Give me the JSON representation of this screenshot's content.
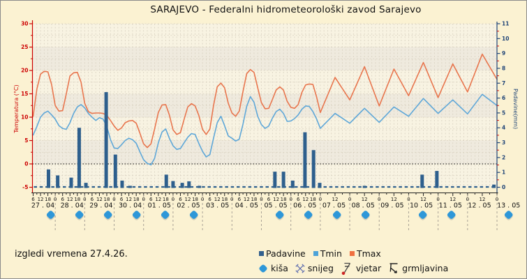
{
  "title": "SARAJEVO - Federalni hidrometeorološki zavod Sarajevo",
  "note": "izgledi vremena 27.4.26.",
  "legend": {
    "series": [
      {
        "label": "Padavine",
        "color": "#33608d"
      },
      {
        "label": "Tmin",
        "color": "#4da3d8"
      },
      {
        "label": "Tmax",
        "color": "#f07040"
      }
    ],
    "symbols": [
      {
        "label": "kiša",
        "icon": "rain"
      },
      {
        "label": "snijeg",
        "icon": "snow"
      },
      {
        "label": "vjetar",
        "icon": "wind"
      },
      {
        "label": "grmljavina",
        "icon": "thunder"
      }
    ]
  },
  "colors": {
    "bg": "#fbf2d2",
    "band_light": "#f8f3e2",
    "band_dark": "#efeade",
    "grid": "#d7d0bf",
    "axis_left": "#cc0000",
    "axis_right": "#1f4477",
    "axis_x": "#222222",
    "text": "#111111",
    "tmax_line": "#e8754d",
    "tmin_line": "#5ea7d8",
    "bar": "#2e5f8d",
    "rain_icon": "#2e97d8",
    "zero_line": "#000000",
    "separator": "#a9a296",
    "snow": "#5c6bae",
    "wind": "#444444",
    "wind_dot": "#cc2222",
    "thunder": "#222222"
  },
  "chart_data": {
    "type": "mixed",
    "title": "SARAJEVO - Federalni hidrometeorološki zavod Sarajevo",
    "y_left": {
      "label": "Temperatura (°C)",
      "min": -5,
      "max": 30,
      "step": 5,
      "ticks": [
        30,
        25,
        20,
        15,
        10,
        5,
        0,
        -5
      ]
    },
    "y_right": {
      "label": "Padavine(mm)",
      "min": 0,
      "max": 11,
      "step": 1,
      "ticks": [
        11,
        10,
        9,
        8,
        7,
        6,
        5,
        4,
        3,
        2,
        1,
        0
      ]
    },
    "zero_line_temp": 0,
    "x_axis": {
      "days": [
        {
          "label": "27 . 04",
          "rain": true,
          "hour_labels": [
            "6",
            "12",
            "18",
            "0"
          ]
        },
        {
          "label": "28 . 04",
          "rain": true,
          "hour_labels": [
            "6",
            "12",
            "18",
            "0"
          ]
        },
        {
          "label": "29 . 04",
          "rain": true,
          "hour_labels": [
            "6",
            "12",
            "18",
            "0"
          ]
        },
        {
          "label": "30 . 04",
          "rain": true,
          "hour_labels": [
            "6",
            "12",
            "18",
            "0"
          ]
        },
        {
          "label": "01 . 05",
          "rain": true,
          "hour_labels": [
            "6",
            "12",
            "18",
            "0"
          ]
        },
        {
          "label": "02 . 05",
          "rain": true,
          "hour_labels": [
            "6",
            "12",
            "18",
            "0"
          ]
        },
        {
          "label": "03 . 05",
          "rain": false,
          "hour_labels": [
            "6",
            "12",
            "18",
            "0"
          ]
        },
        {
          "label": "04 . 05",
          "rain": false,
          "hour_labels": [
            "6",
            "12",
            "18",
            "0"
          ]
        },
        {
          "label": "05 . 05",
          "rain": true,
          "hour_labels": [
            "6",
            "12",
            "18",
            "0"
          ]
        },
        {
          "label": "06 . 05",
          "rain": true,
          "hour_labels": [
            "6",
            "12",
            "18",
            "0"
          ]
        },
        {
          "label": "07 . 05",
          "rain": true,
          "hour_labels": [
            "12",
            "0"
          ]
        },
        {
          "label": "08 . 05",
          "rain": true,
          "hour_labels": [
            "12",
            "0"
          ]
        },
        {
          "label": "09 . 05",
          "rain": false,
          "hour_labels": [
            "12",
            "0"
          ]
        },
        {
          "label": "10 . 05",
          "rain": true,
          "hour_labels": [
            "12",
            "0"
          ]
        },
        {
          "label": "11 . 05",
          "rain": true,
          "hour_labels": [
            "12",
            "0"
          ]
        },
        {
          "label": "12 . 05",
          "rain": false,
          "hour_labels": [
            "12",
            "0"
          ]
        },
        {
          "label": "13 . 05",
          "rain": true,
          "hour_labels": []
        }
      ]
    },
    "series": {
      "tmax": {
        "name": "Tmax",
        "points": [
          [
            6,
            10.2
          ],
          [
            9,
            16
          ],
          [
            12,
            19.2
          ],
          [
            15,
            19.8
          ],
          [
            18,
            19.7
          ],
          [
            21,
            17
          ],
          [
            24,
            12.5
          ],
          [
            27,
            11.3
          ],
          [
            30,
            11.4
          ],
          [
            33,
            15
          ],
          [
            36,
            18.8
          ],
          [
            39,
            19.5
          ],
          [
            42,
            19.6
          ],
          [
            45,
            17.5
          ],
          [
            48,
            13
          ],
          [
            51,
            11.2
          ],
          [
            54,
            10.8
          ],
          [
            57,
            10.9
          ],
          [
            60,
            10.9
          ],
          [
            63,
            10.8
          ],
          [
            66,
            10.4
          ],
          [
            69,
            9.3
          ],
          [
            72,
            8.1
          ],
          [
            75,
            7.2
          ],
          [
            78,
            7.7
          ],
          [
            81,
            8.8
          ],
          [
            84,
            9.2
          ],
          [
            87,
            9.3
          ],
          [
            90,
            8.7
          ],
          [
            93,
            6.6
          ],
          [
            96,
            4.3
          ],
          [
            99,
            3.5
          ],
          [
            102,
            4.3
          ],
          [
            105,
            7.5
          ],
          [
            108,
            11
          ],
          [
            111,
            12.6
          ],
          [
            114,
            12.7
          ],
          [
            117,
            10.5
          ],
          [
            120,
            7.3
          ],
          [
            123,
            6.3
          ],
          [
            126,
            6.7
          ],
          [
            129,
            9.5
          ],
          [
            132,
            12.2
          ],
          [
            135,
            12.9
          ],
          [
            138,
            12.4
          ],
          [
            141,
            10.4
          ],
          [
            144,
            7.4
          ],
          [
            147,
            6.3
          ],
          [
            150,
            7.5
          ],
          [
            153,
            12.5
          ],
          [
            156,
            16.5
          ],
          [
            159,
            17.3
          ],
          [
            162,
            16.3
          ],
          [
            165,
            13
          ],
          [
            168,
            10.9
          ],
          [
            171,
            10.2
          ],
          [
            174,
            11.3
          ],
          [
            177,
            15.5
          ],
          [
            180,
            19.3
          ],
          [
            183,
            20.2
          ],
          [
            186,
            19.6
          ],
          [
            189,
            16.3
          ],
          [
            192,
            13.1
          ],
          [
            195,
            11.8
          ],
          [
            198,
            11.9
          ],
          [
            201,
            13.8
          ],
          [
            204,
            15.8
          ],
          [
            207,
            16.5
          ],
          [
            210,
            15.8
          ],
          [
            213,
            13.4
          ],
          [
            216,
            12.1
          ],
          [
            219,
            11.9
          ],
          [
            222,
            12.7
          ],
          [
            225,
            15.3
          ],
          [
            228,
            16.9
          ],
          [
            231,
            17.1
          ],
          [
            234,
            17
          ],
          [
            237,
            14.3
          ],
          [
            240,
            11
          ],
          [
            252,
            18.5
          ],
          [
            264,
            13.7
          ],
          [
            276,
            20.8
          ],
          [
            288,
            12.4
          ],
          [
            300,
            20.3
          ],
          [
            312,
            14.6
          ],
          [
            324,
            21.7
          ],
          [
            336,
            14.2
          ],
          [
            348,
            21.4
          ],
          [
            360,
            15.4
          ],
          [
            372,
            23.5
          ],
          [
            384,
            18.1
          ]
        ]
      },
      "tmin": {
        "name": "Tmin",
        "points": [
          [
            6,
            6.2
          ],
          [
            9,
            8
          ],
          [
            12,
            10
          ],
          [
            15,
            10.9
          ],
          [
            18,
            11.3
          ],
          [
            21,
            10.5
          ],
          [
            24,
            9.6
          ],
          [
            27,
            8.2
          ],
          [
            30,
            7.6
          ],
          [
            33,
            7.4
          ],
          [
            36,
            8.8
          ],
          [
            39,
            10.8
          ],
          [
            42,
            12.2
          ],
          [
            45,
            12.7
          ],
          [
            48,
            12
          ],
          [
            51,
            10.8
          ],
          [
            54,
            10
          ],
          [
            57,
            9.3
          ],
          [
            60,
            9.9
          ],
          [
            63,
            9.6
          ],
          [
            66,
            8
          ],
          [
            69,
            5.2
          ],
          [
            72,
            3.4
          ],
          [
            75,
            3.3
          ],
          [
            78,
            4.1
          ],
          [
            81,
            5
          ],
          [
            84,
            5.5
          ],
          [
            87,
            5.2
          ],
          [
            90,
            4.4
          ],
          [
            93,
            2.6
          ],
          [
            96,
            0.9
          ],
          [
            99,
            0.1
          ],
          [
            102,
            -0.2
          ],
          [
            105,
            1.2
          ],
          [
            108,
            4.5
          ],
          [
            111,
            6.8
          ],
          [
            114,
            7.5
          ],
          [
            117,
            5.5
          ],
          [
            120,
            3.9
          ],
          [
            123,
            3.1
          ],
          [
            126,
            3.3
          ],
          [
            129,
            4.5
          ],
          [
            132,
            5.7
          ],
          [
            135,
            6.5
          ],
          [
            138,
            6.3
          ],
          [
            141,
            4.4
          ],
          [
            144,
            2.7
          ],
          [
            147,
            1.5
          ],
          [
            150,
            2
          ],
          [
            153,
            5.5
          ],
          [
            156,
            8.8
          ],
          [
            159,
            10.2
          ],
          [
            162,
            8.2
          ],
          [
            165,
            6
          ],
          [
            168,
            5.5
          ],
          [
            171,
            4.9
          ],
          [
            174,
            5.3
          ],
          [
            177,
            8.5
          ],
          [
            180,
            12.3
          ],
          [
            183,
            14.4
          ],
          [
            186,
            13.2
          ],
          [
            189,
            10.2
          ],
          [
            192,
            8.4
          ],
          [
            195,
            7.6
          ],
          [
            198,
            8.1
          ],
          [
            201,
            9.8
          ],
          [
            204,
            11.2
          ],
          [
            207,
            11.7
          ],
          [
            210,
            10.8
          ],
          [
            213,
            9.1
          ],
          [
            216,
            9.2
          ],
          [
            219,
            9.7
          ],
          [
            222,
            10.5
          ],
          [
            225,
            11.7
          ],
          [
            228,
            12.4
          ],
          [
            231,
            12.3
          ],
          [
            234,
            11.2
          ],
          [
            237,
            9.6
          ],
          [
            240,
            7.6
          ],
          [
            252,
            10.8
          ],
          [
            264,
            8.7
          ],
          [
            276,
            11.9
          ],
          [
            288,
            8.9
          ],
          [
            300,
            12.2
          ],
          [
            312,
            10.2
          ],
          [
            324,
            14
          ],
          [
            336,
            10.8
          ],
          [
            348,
            13.7
          ],
          [
            360,
            10.7
          ],
          [
            372,
            14.9
          ],
          [
            384,
            12.5
          ]
        ]
      },
      "padavine": {
        "name": "Padavine",
        "unit": "mm",
        "bars": [
          [
            18.5,
            1.2
          ],
          [
            26,
            0.8
          ],
          [
            37,
            0.65
          ],
          [
            43.5,
            4
          ],
          [
            49,
            0.3
          ],
          [
            65.5,
            6.4
          ],
          [
            73,
            2.2
          ],
          [
            78.5,
            0.45
          ],
          [
            85,
            0.1
          ],
          [
            114.5,
            0.85
          ],
          [
            120,
            0.42
          ],
          [
            127.5,
            0.3
          ],
          [
            133,
            0.4
          ],
          [
            141.5,
            0.1
          ],
          [
            203,
            1.05
          ],
          [
            210,
            1.05
          ],
          [
            217.5,
            0.45
          ],
          [
            227.5,
            3.7
          ],
          [
            234.5,
            2.5
          ],
          [
            239.5,
            0.3
          ],
          [
            276,
            0.1
          ],
          [
            323,
            0.85
          ],
          [
            335,
            1.1
          ],
          [
            381.5,
            0.18
          ]
        ]
      }
    }
  }
}
